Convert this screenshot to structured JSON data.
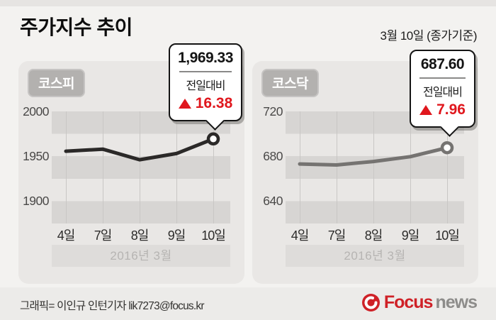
{
  "header": {
    "title": "주가지수 추이",
    "date_label": "3월 10일 (종가기준)"
  },
  "colors": {
    "up_red": "#e0171d",
    "kospi_line": "#2b2928",
    "kosdaq_line": "#757371",
    "brand_red": "#cf2127",
    "brand_gray": "#8d8c8a",
    "panel_bg": "#e9e7e5",
    "stripe_dark": "#d7d5d3"
  },
  "chart_data": [
    {
      "type": "line",
      "title": "코스피",
      "x": [
        "4일",
        "7일",
        "8일",
        "9일",
        "10일"
      ],
      "values": [
        1955.6,
        1957.9,
        1946.1,
        1953.0,
        1969.33
      ],
      "yticks": [
        "2000",
        "1950",
        "1900"
      ],
      "y_top": 2000,
      "y_bottom": 1875,
      "grid": true,
      "line_color": "#2b2928",
      "xaxis_note": "2016년 3월",
      "callout": {
        "value": "1,969.33",
        "label": "전일대비",
        "change": "16.38",
        "direction": "up"
      }
    },
    {
      "type": "line",
      "title": "코스닥",
      "x": [
        "4일",
        "7일",
        "8일",
        "9일",
        "10일"
      ],
      "values": [
        673.1,
        672.2,
        675.3,
        679.6,
        687.6
      ],
      "yticks": [
        "720",
        "680",
        "640"
      ],
      "y_top": 720,
      "y_bottom": 620,
      "grid": true,
      "line_color": "#757371",
      "xaxis_note": "2016년 3월",
      "callout": {
        "value": "687.60",
        "label": "전일대비",
        "change": "7.96",
        "direction": "up"
      }
    }
  ],
  "footer": {
    "credit": "그래픽= 이인규 인턴기자 lik7273@focus.kr",
    "logo_brand": "Focus",
    "logo_suffix": "news"
  }
}
